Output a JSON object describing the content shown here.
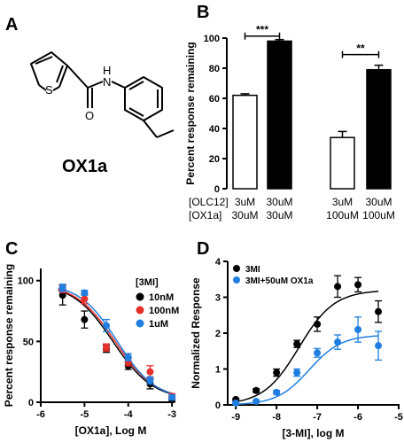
{
  "panels": {
    "A": {
      "letter": "A",
      "compound_name": "OX1a",
      "atom_S": "S",
      "atom_N": "N",
      "atom_H": "H",
      "atom_O": "O"
    },
    "B": {
      "letter": "B"
    },
    "C": {
      "letter": "C"
    },
    "D": {
      "letter": "D"
    }
  },
  "colors": {
    "black": "#000000",
    "red": "#e8302a",
    "blue": "#1f7ee0",
    "white": "#ffffff"
  },
  "chart_data": [
    {
      "panel": "B",
      "type": "bar",
      "ylabel": "Percent response remaining",
      "ylim": [
        0,
        100
      ],
      "yticks": [
        0,
        20,
        40,
        60,
        80,
        100
      ],
      "condition_labels": [
        "[OLC12]",
        "[OX1a]"
      ],
      "groups": [
        {
          "bars": [
            {
              "fill": "white",
              "value": 62,
              "error": 1,
              "olc12": "3uM",
              "ox1a": "30uM"
            },
            {
              "fill": "black",
              "value": 98,
              "error": 1,
              "olc12": "30uM",
              "ox1a": "30uM"
            }
          ],
          "significance": "***"
        },
        {
          "bars": [
            {
              "fill": "white",
              "value": 34,
              "error": 4,
              "olc12": "3uM",
              "ox1a": "100uM"
            },
            {
              "fill": "black",
              "value": 79,
              "error": 3,
              "olc12": "30uM",
              "ox1a": "100uM"
            }
          ],
          "significance": "**"
        }
      ]
    },
    {
      "panel": "C",
      "type": "scatter",
      "xlabel": "[OX1a], Log M",
      "ylabel": "Percent response remaining",
      "xlim": [
        -6,
        -2.8
      ],
      "ylim": [
        0,
        110
      ],
      "xticks": [
        -6,
        -5,
        -4,
        -3
      ],
      "yticks": [
        0,
        50,
        100
      ],
      "legend_title": "[3MI]",
      "x": [
        -5.5,
        -5,
        -4.5,
        -4,
        -3.5,
        -3
      ],
      "series": [
        {
          "name": "10nM",
          "color": "#000000",
          "values": [
            88,
            68,
            44,
            30,
            15,
            2
          ],
          "errors": [
            8,
            7,
            3,
            3,
            4,
            2
          ]
        },
        {
          "name": "100nM",
          "color": "#e8302a",
          "values": [
            93,
            85,
            45,
            33,
            25,
            5
          ],
          "errors": [
            3,
            4,
            3,
            3,
            5,
            2
          ]
        },
        {
          "name": "1uM",
          "color": "#1f7ee0",
          "values": [
            94,
            90,
            63,
            37,
            18,
            4
          ],
          "errors": [
            3,
            2,
            5,
            3,
            3,
            2
          ]
        }
      ],
      "fits": [
        {
          "color": "#000000",
          "bottom": 2,
          "top": 98,
          "logIC50": -4.35,
          "hill": 0.95
        },
        {
          "color": "#e8302a",
          "bottom": 2,
          "top": 98,
          "logIC50": -4.3,
          "hill": 0.95
        },
        {
          "color": "#1f7ee0",
          "bottom": 2,
          "top": 98,
          "logIC50": -4.25,
          "hill": 1.0
        }
      ]
    },
    {
      "panel": "D",
      "type": "scatter",
      "xlabel": "[3-MI], log M",
      "ylabel": "Normalized Response",
      "xlim": [
        -9.2,
        -5
      ],
      "ylim": [
        0,
        4
      ],
      "xticks": [
        -9,
        -8,
        -7,
        -6,
        -5
      ],
      "yticks": [
        0,
        1,
        2,
        3,
        4
      ],
      "x": [
        -9,
        -8.5,
        -8,
        -7.5,
        -7,
        -6.5,
        -6,
        -5.5
      ],
      "series": [
        {
          "name": "3MI",
          "color": "#000000",
          "values": [
            0.15,
            0.4,
            0.9,
            1.7,
            2.25,
            3.3,
            3.35,
            2.6
          ],
          "errors": [
            0.03,
            0.05,
            0.1,
            0.1,
            0.2,
            0.3,
            0.2,
            0.3
          ]
        },
        {
          "name": "3MI+50uM OX1a",
          "color": "#1f7ee0",
          "values": [
            0.05,
            0.1,
            0.35,
            0.9,
            1.45,
            1.75,
            2.1,
            1.65
          ],
          "errors": [
            0.03,
            0.03,
            0.05,
            0.1,
            0.12,
            0.2,
            0.35,
            0.4
          ]
        }
      ],
      "fits": [
        {
          "color": "#000000",
          "bottom": 0,
          "top": 3.2,
          "logEC50": -7.45,
          "hill": 1.0
        },
        {
          "color": "#1f7ee0",
          "bottom": 0,
          "top": 1.95,
          "logEC50": -7.2,
          "hill": 1.1
        }
      ]
    }
  ]
}
